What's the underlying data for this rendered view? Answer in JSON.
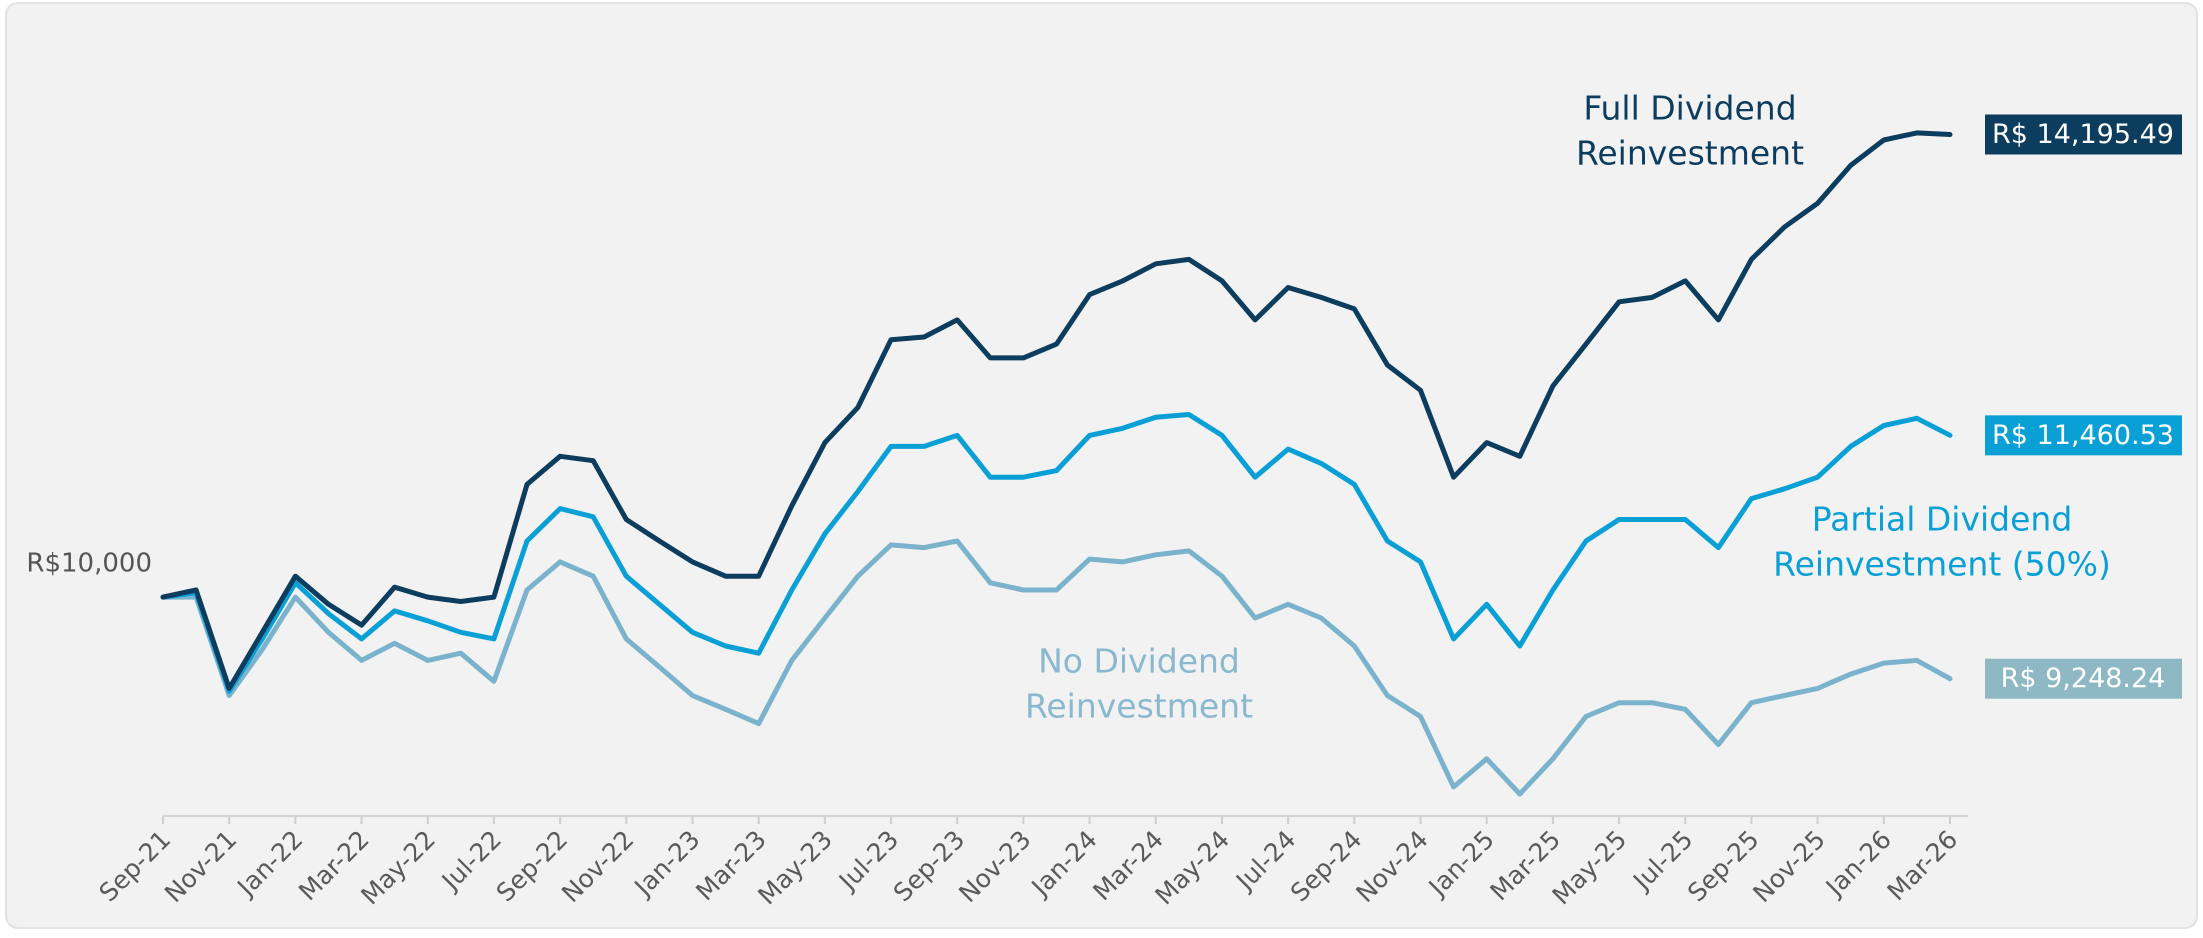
{
  "chart_data": {
    "type": "line",
    "categories": [
      "Sep-21",
      null,
      "Nov-21",
      null,
      "Jan-22",
      null,
      "Mar-22",
      null,
      "May-22",
      null,
      "Jul-22",
      null,
      "Sep-22",
      null,
      "Nov-22",
      null,
      "Jan-23",
      null,
      "Mar-23",
      null,
      "May-23",
      null,
      "Jul-23",
      null,
      "Sep-23",
      null,
      "Nov-23",
      null,
      "Jan-24",
      null,
      "Mar-24",
      null,
      "May-24",
      null,
      "Jul-24",
      null,
      "Sep-24",
      null,
      "Nov-24",
      null,
      "Jan-25",
      null,
      "Mar-25",
      null,
      "May-25",
      null,
      "Jul-25",
      null,
      "Sep-25",
      null,
      "Nov-25",
      null,
      "Jan-26",
      null,
      "Mar-26"
    ],
    "ylim": [
      8000,
      15000
    ],
    "yticks": [
      {
        "value": 10000,
        "label": "R$10,000"
      }
    ],
    "series": [
      {
        "name": "Full Dividend Reinvestment",
        "color": "#0d3d5e",
        "label_color": "#0d3d5e",
        "end_label": "R$ 14,195.49",
        "values": [
          9990,
          10055,
          9160,
          9670,
          10180,
          9925,
          9735,
          10080,
          9990,
          9950,
          9990,
          11015,
          11270,
          11230,
          10695,
          10500,
          10310,
          10180,
          10180,
          10820,
          11395,
          11715,
          12330,
          12355,
          12510,
          12165,
          12165,
          12290,
          12740,
          12865,
          13020,
          13060,
          12865,
          12510,
          12805,
          12715,
          12610,
          12100,
          11870,
          11080,
          11395,
          11270,
          11910,
          12290,
          12675,
          12715,
          12865,
          12510,
          13060,
          13355,
          13570,
          13915,
          14145,
          14210,
          14195.49
        ]
      },
      {
        "name": "Partial Dividend Reinvestment (50%)",
        "color": "#0aa0d6",
        "label_color": "#0aa0d6",
        "end_label": "R$ 11,460.53",
        "values": [
          9990,
          10030,
          9135,
          9610,
          10120,
          9840,
          9610,
          9865,
          9775,
          9670,
          9610,
          10500,
          10795,
          10720,
          10180,
          9925,
          9670,
          9545,
          9480,
          10055,
          10565,
          10950,
          11360,
          11360,
          11460,
          11080,
          11080,
          11140,
          11460,
          11525,
          11625,
          11650,
          11460,
          11080,
          11335,
          11205,
          11015,
          10500,
          10310,
          9610,
          9925,
          9545,
          10055,
          10500,
          10695,
          10695,
          10695,
          10440,
          10885,
          10975,
          11080,
          11360,
          11550,
          11615,
          11460.53
        ]
      },
      {
        "name": "No Dividend Reinvestment",
        "color": "#7ab3cb",
        "label_color": "#8db8c4",
        "end_label": "R$ 9,248.24",
        "values": [
          9990,
          9990,
          9095,
          9515,
          9990,
          9670,
          9415,
          9570,
          9415,
          9480,
          9225,
          10055,
          10310,
          10180,
          9610,
          9355,
          9095,
          8970,
          8840,
          9415,
          9800,
          10180,
          10465,
          10440,
          10500,
          10120,
          10055,
          10055,
          10335,
          10310,
          10375,
          10410,
          10180,
          9800,
          9925,
          9800,
          9545,
          9095,
          8905,
          8265,
          8520,
          8200,
          8520,
          8905,
          9030,
          9030,
          8970,
          8650,
          9030,
          9095,
          9160,
          9290,
          9390,
          9415,
          9248.24
        ]
      }
    ],
    "annotations": [
      {
        "lines": [
          "Full Dividend",
          "Reinvestment"
        ],
        "color": "#0d3d5e"
      },
      {
        "lines": [
          "Partial Dividend",
          "Reinvestment (50%)"
        ],
        "color": "#0aa0d6"
      },
      {
        "lines": [
          "No Dividend",
          "Reinvestment"
        ],
        "color": "#8ab8cf"
      }
    ]
  }
}
